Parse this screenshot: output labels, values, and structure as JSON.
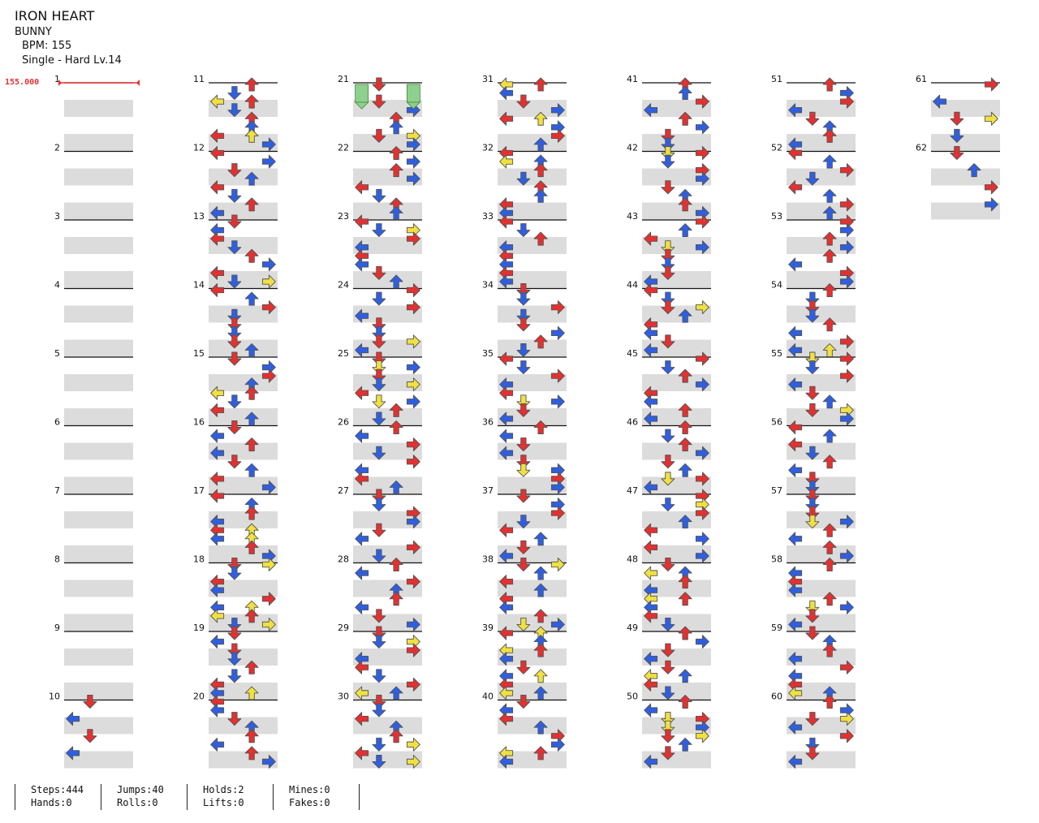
{
  "header": {
    "title": "IRON HEART",
    "artist": "BUNNY",
    "bpm_label": "BPM: 155",
    "difficulty_label": "Single - Hard  Lv.14"
  },
  "bpm_marker": "155.000",
  "chart": {
    "measures": [
      1,
      2,
      3,
      4,
      5,
      6,
      7,
      8,
      9,
      10,
      11,
      12,
      13,
      14,
      15,
      16,
      17,
      18,
      19,
      20,
      21,
      22,
      23,
      24,
      25,
      26,
      27,
      28,
      29,
      30,
      31,
      32,
      33,
      34,
      35,
      36,
      37,
      38,
      39,
      40,
      41,
      42,
      43,
      44,
      45,
      46,
      47,
      48,
      49,
      50,
      51,
      52,
      53,
      54,
      55,
      56,
      57,
      58,
      59,
      60,
      61,
      62
    ],
    "note_colors": {
      "quarter": "#e53030",
      "eighth": "#2f5fe0",
      "sixteenth": "#f0e040",
      "hold": "#8fd08f"
    },
    "directions": [
      "left",
      "down",
      "up",
      "right"
    ]
  },
  "stats": {
    "steps": "Steps:444",
    "hands": "Hands:0",
    "jumps": "Jumps:40",
    "rolls": "Rolls:0",
    "holds": "Holds:2",
    "lifts": "Lifts:0",
    "mines": "Mines:0",
    "fakes": "Fakes:0"
  }
}
